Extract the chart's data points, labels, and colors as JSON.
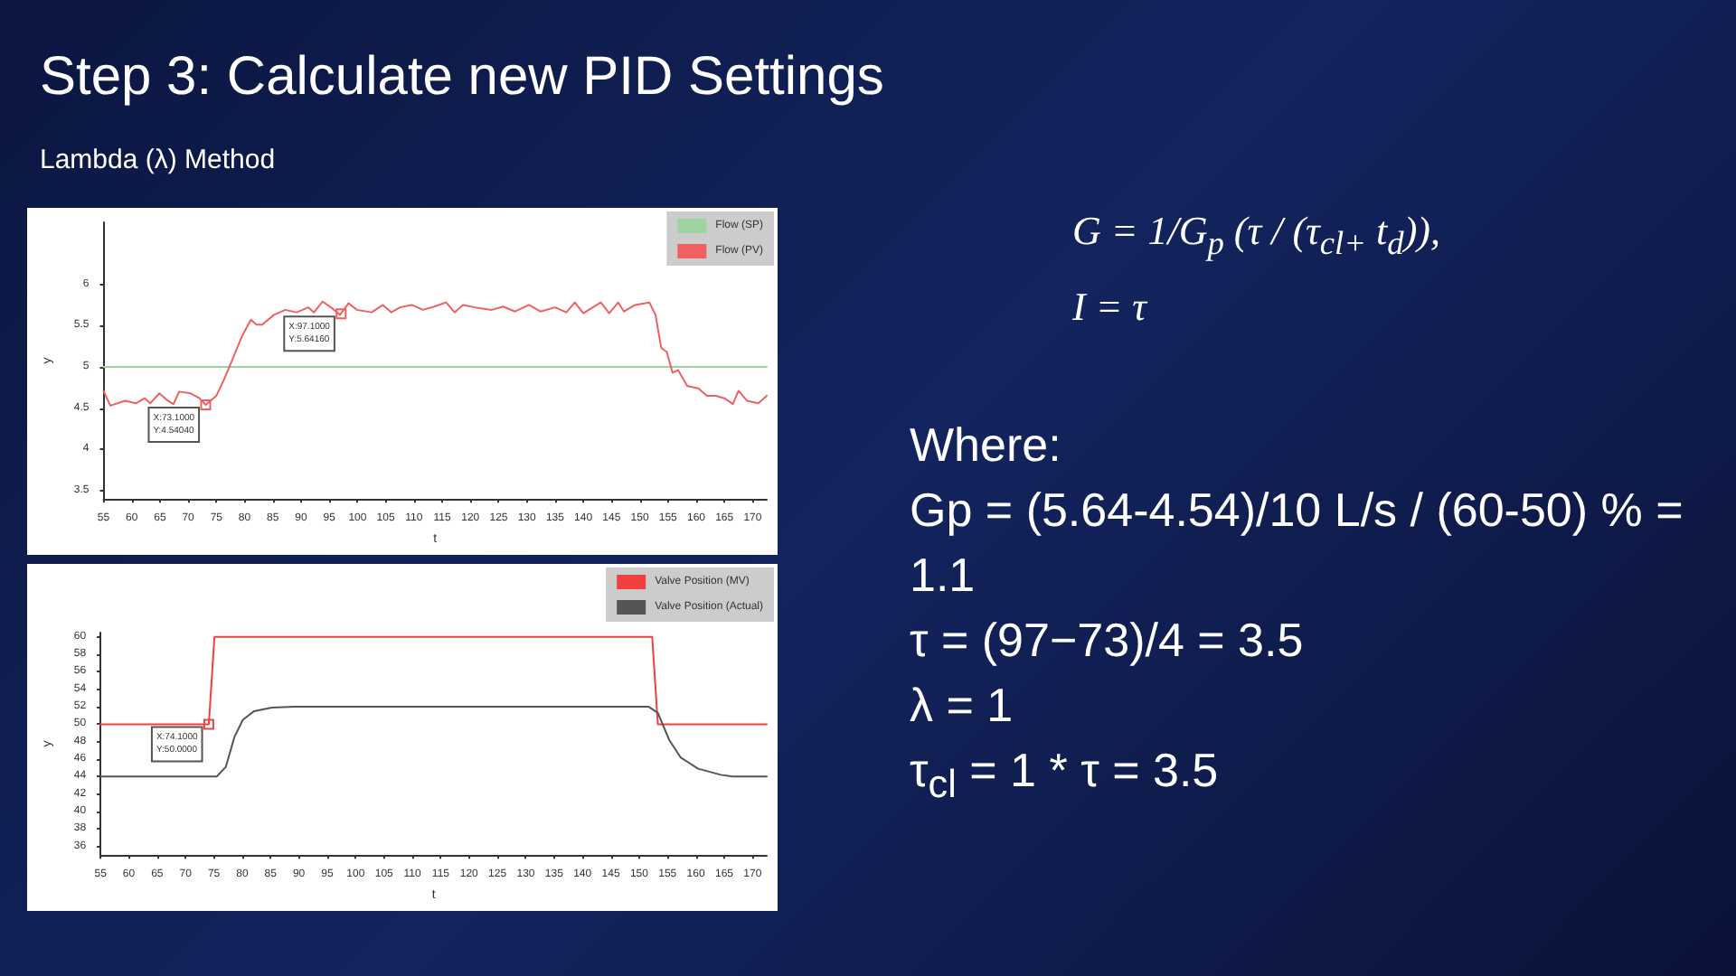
{
  "chart_data": [
    {
      "type": "line",
      "title": "Step 3: Calculate new PID Settings",
      "subtitle": "Lambda (λ) Method",
      "xlabel": "t",
      "ylabel": "y",
      "legend": "top right",
      "marker": "none",
      "xlim": [
        55,
        172.5
      ],
      "xticks": [
        55,
        60,
        65,
        70,
        75,
        80,
        85,
        90,
        95,
        100,
        105,
        110,
        115,
        120,
        125,
        130,
        135,
        140,
        145,
        150,
        155,
        160,
        165,
        170
      ],
      "ylim": [
        3.4,
        6.75
      ],
      "yticks": [
        3.5,
        4,
        4.5,
        5,
        5.5,
        6
      ],
      "series": [
        {
          "name": "Flow (SP)",
          "color": "#9fd39f",
          "x": [
            55,
            172.5
          ],
          "values": [
            5,
            5
          ]
        },
        {
          "name": "Flow (PV)",
          "color": "#f06060",
          "x": [
            55,
            56.2,
            58.8,
            60.8,
            62.3,
            63.3,
            64.9,
            66.4,
            67.4,
            68.4,
            70.4,
            72,
            73.1,
            75,
            76.5,
            77.6,
            79.6,
            81.1,
            82.1,
            83.1,
            85.2,
            87.2,
            89.2,
            91.3,
            92.3,
            93.8,
            95.3,
            96.9,
            98.4,
            99.9,
            102.5,
            104.5,
            106,
            107.5,
            109.6,
            111.6,
            113.6,
            115.7,
            117.2,
            118.7,
            120.8,
            123.8,
            125.8,
            127.9,
            130.4,
            132.4,
            135,
            137,
            138.5,
            140,
            143.1,
            144.6,
            146.2,
            147.2,
            149.2,
            151.7,
            152.8,
            153.8,
            154.8,
            155.8,
            156.8,
            158.4,
            160.4,
            161.9,
            163.5,
            165,
            166.5,
            167.5,
            169,
            171,
            172.5
          ],
          "values": [
            4.71,
            4.53,
            4.59,
            4.56,
            4.62,
            4.56,
            4.68,
            4.59,
            4.55,
            4.7,
            4.68,
            4.62,
            4.54,
            4.65,
            4.87,
            5.05,
            5.38,
            5.57,
            5.51,
            5.51,
            5.63,
            5.69,
            5.66,
            5.72,
            5.66,
            5.79,
            5.72,
            5.63,
            5.77,
            5.69,
            5.66,
            5.75,
            5.66,
            5.72,
            5.75,
            5.69,
            5.73,
            5.78,
            5.66,
            5.75,
            5.72,
            5.69,
            5.73,
            5.67,
            5.75,
            5.67,
            5.72,
            5.66,
            5.78,
            5.65,
            5.78,
            5.65,
            5.78,
            5.67,
            5.75,
            5.78,
            5.63,
            5.23,
            5.18,
            4.93,
            4.96,
            4.77,
            4.74,
            4.65,
            4.65,
            4.62,
            4.55,
            4.71,
            4.59,
            4.56,
            4.65
          ]
        }
      ],
      "annotations": [
        {
          "text": "X:73.1000 Y:4.54040",
          "x": 73.1,
          "y": 4.5404
        },
        {
          "text": "X:97.1000 Y:5.64160",
          "x": 97.1,
          "y": 5.6416
        }
      ]
    },
    {
      "type": "line",
      "xlabel": "t",
      "ylabel": "y",
      "legend": "top right",
      "marker": "none",
      "xlim": [
        55,
        172.5
      ],
      "xticks": [
        55,
        60,
        65,
        70,
        75,
        80,
        85,
        90,
        95,
        100,
        105,
        110,
        115,
        120,
        125,
        130,
        135,
        140,
        145,
        150,
        155,
        160,
        165,
        170
      ],
      "ylim": [
        35,
        60.5
      ],
      "yticks": [
        36,
        38,
        40,
        42,
        44,
        46,
        48,
        50,
        52,
        54,
        56,
        58,
        60
      ],
      "series": [
        {
          "name": "Valve Position (MV)",
          "color": "#f04040",
          "x": [
            55,
            74.1,
            75.1,
            152.3,
            153.3,
            172.5
          ],
          "values": [
            50,
            50,
            60,
            60,
            50,
            50
          ]
        },
        {
          "name": "Valve Position (Actual)",
          "color": "#555555",
          "x": [
            55,
            75.5,
            77.1,
            78.6,
            80.1,
            82.1,
            85.2,
            89.2,
            151.7,
            153.3,
            155.3,
            157.3,
            160.4,
            164.4,
            166.5,
            172.5
          ],
          "values": [
            44,
            44,
            45.1,
            48.5,
            50.5,
            51.5,
            51.9,
            52,
            52,
            51.3,
            48.2,
            46.2,
            44.9,
            44.2,
            44,
            44
          ]
        }
      ],
      "annotations": [
        {
          "text": "X:74.1000 Y:50.0000",
          "x": 74.1,
          "y": 50
        }
      ]
    },
    {
      "type": "other",
      "annotations": [
        "G = 1/G$_{p}$ (τ / (τ$_{cl+}$ t$_{d}$)),",
        "I = τ",
        "Where:",
        "Gp = (5.64-4.54)/10 L/s / (60-50) % = 1.1",
        "τ = (97−73)/4 = 3.5",
        "λ = 1",
        "τ$_{cl}$ = 1 * τ = 3.5"
      ]
    }
  ]
}
